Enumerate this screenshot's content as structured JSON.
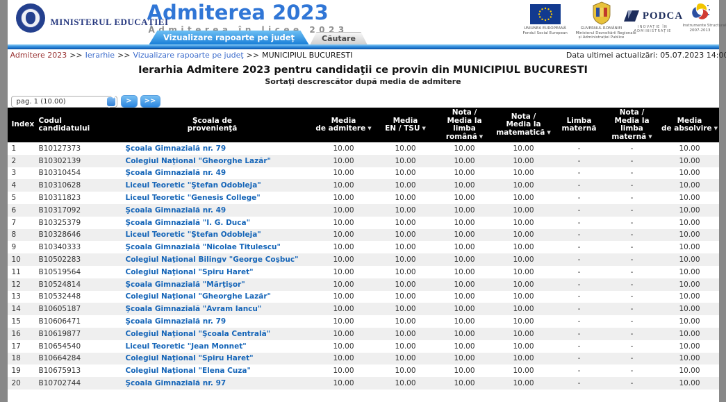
{
  "colors": {
    "accent_blue": "#1a7fd8",
    "title_blue": "#3076d6",
    "link_blue": "#3d6dcc",
    "school_link_blue": "#1565b8",
    "visited_link_red": "#993333",
    "table_header_bg": "#000000",
    "row_alt_bg": "#efefef"
  },
  "header": {
    "ministry": "MINISTERUL EDUCAȚIEI",
    "title": "Admiterea 2023",
    "subtitle": "Admiterea în licee 2023",
    "tabs": [
      {
        "label": "Vizualizare rapoarte pe judeţ",
        "active": true
      },
      {
        "label": "Căutare",
        "active": false
      }
    ],
    "logos": [
      {
        "name": "uniunea-europeana",
        "caption_line1": "UNIUNEA EUROPEANĂ",
        "caption_line2": "Fondul Social European"
      },
      {
        "name": "guvernul-romaniei",
        "caption_line1": "GUVERNUL ROMÂNIEI",
        "caption_line2": "Ministerul Dezvoltării Regionale",
        "caption_line3": "și Administrației Publice"
      },
      {
        "name": "podca",
        "text": "PODCA",
        "caption_line1": "INOVAȚIE ÎN ADMINISTRAȚIE"
      },
      {
        "name": "instrumente-structurale",
        "caption_line1": "Instrumente Structurale",
        "caption_line2": "2007-2013"
      }
    ]
  },
  "breadcrumb": {
    "separator": ">>",
    "items": [
      {
        "label": "Admitere 2023"
      },
      {
        "label": "Ierarhie"
      },
      {
        "label": "Vizualizare rapoarte pe judeţ"
      },
      {
        "label": "MUNICIPIUL BUCURESTI"
      }
    ],
    "last_update": "Data ultimei actualizări: 05.07.2023 14:00"
  },
  "page": {
    "title": "Ierarhia Admitere 2023 pentru candidaţii ce provin din MUNICIPIUL BUCURESTI",
    "subtitle": "Sortaţi descrescător după media de admitere"
  },
  "pagination": {
    "selected": "pag. 1 (10.00)",
    "next_label": ">",
    "last_label": ">>"
  },
  "table": {
    "columns": [
      {
        "label": "Index",
        "lines": [
          "Index"
        ],
        "sortable": false,
        "align": "left"
      },
      {
        "label": "Codul candidatului",
        "lines": [
          "Codul candidatului"
        ],
        "sortable": false,
        "align": "left"
      },
      {
        "label": "Şcoala de provenienţă",
        "lines": [
          "Şcoala de",
          "provenienţă"
        ],
        "sortable": false,
        "align": "center"
      },
      {
        "label": "Media de admitere",
        "lines": [
          "Media",
          "de admitere"
        ],
        "sortable": true,
        "align": "center"
      },
      {
        "label": "Media EN / TSU",
        "lines": [
          "Media",
          "EN / TSU"
        ],
        "sortable": true,
        "align": "center"
      },
      {
        "label": "Nota / Media la limba română",
        "lines": [
          "Nota /",
          "Media la",
          "limba",
          "română"
        ],
        "sortable": true,
        "align": "center"
      },
      {
        "label": "Nota / Media la matematică",
        "lines": [
          "Nota /",
          "Media la",
          "matematică"
        ],
        "sortable": true,
        "align": "center"
      },
      {
        "label": "Limba maternă",
        "lines": [
          "Limba",
          "maternă"
        ],
        "sortable": false,
        "align": "center"
      },
      {
        "label": "Nota / Media la limba maternă",
        "lines": [
          "Nota /",
          "Media la",
          "limba",
          "maternă"
        ],
        "sortable": true,
        "align": "center"
      },
      {
        "label": "Media de absolvire",
        "lines": [
          "Media",
          "de absolvire"
        ],
        "sortable": true,
        "align": "center"
      }
    ],
    "rows": [
      [
        "1",
        "B10127373",
        "Şcoala Gimnazială nr. 79",
        "10.00",
        "10.00",
        "10.00",
        "10.00",
        "-",
        "-",
        "10.00"
      ],
      [
        "2",
        "B10302139",
        "Colegiul Naţional \"Gheorghe Lazăr\"",
        "10.00",
        "10.00",
        "10.00",
        "10.00",
        "-",
        "-",
        "10.00"
      ],
      [
        "3",
        "B10310454",
        "Şcoala Gimnazială nr. 49",
        "10.00",
        "10.00",
        "10.00",
        "10.00",
        "-",
        "-",
        "10.00"
      ],
      [
        "4",
        "B10310628",
        "Liceul Teoretic \"Ştefan Odobleja\"",
        "10.00",
        "10.00",
        "10.00",
        "10.00",
        "-",
        "-",
        "10.00"
      ],
      [
        "5",
        "B10311823",
        "Liceul Teoretic \"Genesis College\"",
        "10.00",
        "10.00",
        "10.00",
        "10.00",
        "-",
        "-",
        "10.00"
      ],
      [
        "6",
        "B10317092",
        "Şcoala Gimnazială nr. 49",
        "10.00",
        "10.00",
        "10.00",
        "10.00",
        "-",
        "-",
        "10.00"
      ],
      [
        "7",
        "B10325379",
        "Şcoala Gimnazială \"I. G. Duca\"",
        "10.00",
        "10.00",
        "10.00",
        "10.00",
        "-",
        "-",
        "10.00"
      ],
      [
        "8",
        "B10328646",
        "Liceul Teoretic \"Ştefan Odobleja\"",
        "10.00",
        "10.00",
        "10.00",
        "10.00",
        "-",
        "-",
        "10.00"
      ],
      [
        "9",
        "B10340333",
        "Şcoala Gimnazială \"Nicolae Titulescu\"",
        "10.00",
        "10.00",
        "10.00",
        "10.00",
        "-",
        "-",
        "10.00"
      ],
      [
        "10",
        "B10502283",
        "Colegiul Naţional Bilingv \"George Coşbuc\"",
        "10.00",
        "10.00",
        "10.00",
        "10.00",
        "-",
        "-",
        "10.00"
      ],
      [
        "11",
        "B10519564",
        "Colegiul Naţional \"Spiru Haret\"",
        "10.00",
        "10.00",
        "10.00",
        "10.00",
        "-",
        "-",
        "10.00"
      ],
      [
        "12",
        "B10524814",
        "Şcoala Gimnazială \"Mărţişor\"",
        "10.00",
        "10.00",
        "10.00",
        "10.00",
        "-",
        "-",
        "10.00"
      ],
      [
        "13",
        "B10532448",
        "Colegiul Naţional \"Gheorghe Lazăr\"",
        "10.00",
        "10.00",
        "10.00",
        "10.00",
        "-",
        "-",
        "10.00"
      ],
      [
        "14",
        "B10605187",
        "Şcoala Gimnazială \"Avram Iancu\"",
        "10.00",
        "10.00",
        "10.00",
        "10.00",
        "-",
        "-",
        "10.00"
      ],
      [
        "15",
        "B10606471",
        "Şcoala Gimnazială nr. 79",
        "10.00",
        "10.00",
        "10.00",
        "10.00",
        "-",
        "-",
        "10.00"
      ],
      [
        "16",
        "B10619877",
        "Colegiul Naţional \"Şcoala Centrală\"",
        "10.00",
        "10.00",
        "10.00",
        "10.00",
        "-",
        "-",
        "10.00"
      ],
      [
        "17",
        "B10654540",
        "Liceul Teoretic \"Jean Monnet\"",
        "10.00",
        "10.00",
        "10.00",
        "10.00",
        "-",
        "-",
        "10.00"
      ],
      [
        "18",
        "B10664284",
        "Colegiul Naţional \"Spiru Haret\"",
        "10.00",
        "10.00",
        "10.00",
        "10.00",
        "-",
        "-",
        "10.00"
      ],
      [
        "19",
        "B10675913",
        "Colegiul Naţional \"Elena Cuza\"",
        "10.00",
        "10.00",
        "10.00",
        "10.00",
        "-",
        "-",
        "10.00"
      ],
      [
        "20",
        "B10702744",
        "Şcoala Gimnazială nr. 97",
        "10.00",
        "10.00",
        "10.00",
        "10.00",
        "-",
        "-",
        "10.00"
      ]
    ]
  }
}
